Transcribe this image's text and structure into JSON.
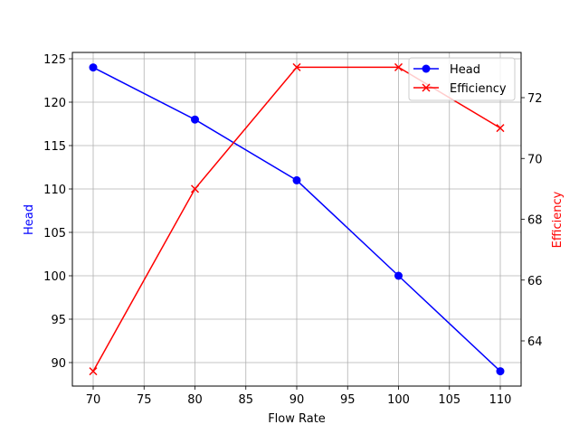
{
  "chart_data": {
    "type": "line",
    "title": "",
    "xlabel": "Flow Rate",
    "ylabel": "Head",
    "ylabel_right": "Efficiency",
    "x": [
      70,
      80,
      90,
      100,
      110
    ],
    "series": [
      {
        "name": "Head",
        "axis": "left",
        "color": "#0000ff",
        "marker": "o",
        "values": [
          124,
          118,
          111,
          100,
          89
        ]
      },
      {
        "name": "Efficiency",
        "axis": "right",
        "color": "#ff0000",
        "marker": "x",
        "values": [
          63,
          69,
          73,
          73,
          71
        ]
      }
    ],
    "xlim": [
      68,
      112
    ],
    "ylim": [
      87.3,
      125.8
    ],
    "ylim_right": [
      62.5,
      73.5
    ],
    "xticks": [
      70,
      75,
      80,
      85,
      90,
      95,
      100,
      105,
      110
    ],
    "yticks": [
      90,
      95,
      100,
      105,
      110,
      115,
      120,
      125
    ],
    "yticks_right": [
      64,
      66,
      68,
      70,
      72
    ],
    "grid": true,
    "legend_position": "upper right"
  },
  "colors": {
    "head": "#0000ff",
    "efficiency": "#ff0000",
    "grid": "#b0b0b0",
    "axis": "#000000"
  }
}
